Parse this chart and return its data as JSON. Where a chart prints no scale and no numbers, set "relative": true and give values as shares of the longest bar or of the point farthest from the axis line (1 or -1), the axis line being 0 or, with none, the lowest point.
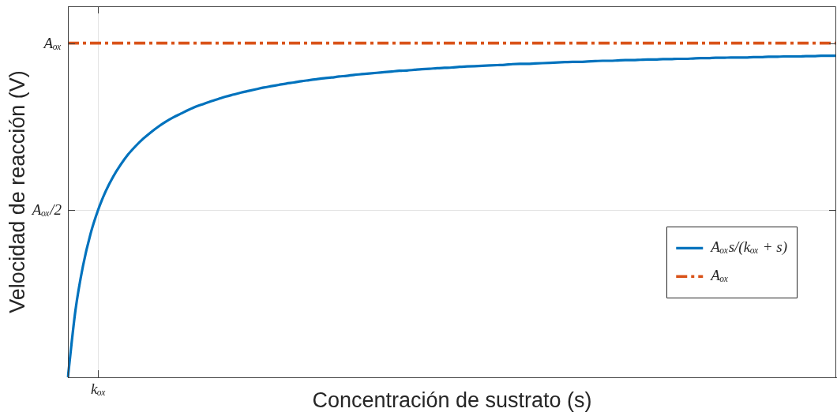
{
  "chart_data": {
    "type": "line",
    "relative": true,
    "xlabel": "Concentración de sustrato (s)",
    "ylabel": "Velocidad de reacción (V)",
    "categories": [
      null,
      null,
      null,
      null,
      null,
      null,
      null,
      null,
      null,
      null,
      null,
      null,
      null,
      null,
      null,
      null,
      null,
      null,
      null,
      null,
      null,
      null,
      null,
      null,
      null,
      null,
      null,
      null,
      null,
      null,
      null,
      null,
      null,
      null,
      null,
      null,
      null,
      null,
      null,
      null,
      null,
      null,
      null,
      null,
      null,
      null,
      null,
      null,
      null,
      null,
      null,
      null,
      null,
      null,
      null,
      null,
      null,
      null,
      null,
      null,
      null,
      null,
      null,
      null,
      null,
      null,
      null,
      null,
      null,
      null,
      null,
      null,
      null,
      null,
      null,
      null,
      null,
      null,
      null,
      null,
      null,
      null,
      null,
      null,
      null,
      null,
      null,
      null,
      null,
      null,
      null,
      null,
      null,
      null,
      null,
      null,
      null,
      null,
      null,
      null,
      null,
      null,
      null
    ],
    "series": [
      {
        "name": "Aₒₓs/(kₒₓ + s)",
        "color": "#0072bd",
        "values": [
          0,
          0.2,
          0.333,
          0.429,
          0.5,
          0.556,
          0.6,
          0.636,
          0.667,
          0.692,
          0.714,
          0.733,
          0.75,
          0.765,
          0.778,
          0.789,
          0.8,
          0.81,
          0.818,
          0.826,
          0.833,
          0.84,
          0.846,
          0.852,
          0.857,
          0.862,
          0.867,
          0.871,
          0.875,
          0.879,
          0.882,
          0.886,
          0.889,
          0.892,
          0.895,
          0.897,
          0.9,
          0.902,
          0.905,
          0.907,
          0.909,
          0.911,
          0.913,
          0.915,
          0.917,
          0.918,
          0.92,
          0.922,
          0.923,
          0.925,
          0.926,
          0.927,
          0.929,
          0.93,
          0.931,
          0.932,
          0.933,
          0.934,
          0.935,
          0.937,
          0.938,
          0.938,
          0.939,
          0.94,
          0.941,
          0.942,
          0.943,
          0.944,
          0.944,
          0.945,
          0.946,
          0.947,
          0.947,
          0.948,
          0.949,
          0.949,
          0.95,
          0.951,
          0.951,
          0.952,
          0.952,
          0.953,
          0.953,
          0.954,
          0.955,
          0.955,
          0.956,
          0.956,
          0.957,
          0.957,
          0.957,
          0.958,
          0.958,
          0.959,
          0.959,
          0.96,
          0.96,
          0.96,
          0.961,
          0.961,
          0.962,
          0.962,
          0.962
        ]
      },
      {
        "name": "Aₒₓ",
        "color": "#d95319",
        "line_style": "dashed",
        "values": [
          1,
          1,
          1,
          1,
          1,
          1,
          1,
          1,
          1,
          1,
          1,
          1,
          1,
          1,
          1,
          1,
          1,
          1,
          1,
          1,
          1,
          1,
          1,
          1,
          1,
          1,
          1,
          1,
          1,
          1,
          1,
          1,
          1,
          1,
          1,
          1,
          1,
          1,
          1,
          1,
          1,
          1,
          1,
          1,
          1,
          1,
          1,
          1,
          1,
          1,
          1,
          1,
          1,
          1,
          1,
          1,
          1,
          1,
          1,
          1,
          1,
          1,
          1,
          1,
          1,
          1,
          1,
          1,
          1,
          1,
          1,
          1,
          1,
          1,
          1,
          1,
          1,
          1,
          1,
          1,
          1,
          1,
          1,
          1,
          1,
          1,
          1,
          1,
          1,
          1,
          1,
          1,
          1,
          1,
          1,
          1,
          1,
          1,
          1,
          1,
          1,
          1,
          1
        ]
      }
    ],
    "annotations": [
      "Aₒₓ",
      "kₒₓ"
    ],
    "ref_lines": [
      {
        "axis": "y",
        "value": 0.5,
        "label": "Aₒₓ/2",
        "color": "#e3e3e3"
      }
    ],
    "legend": "right",
    "marker": "none"
  }
}
